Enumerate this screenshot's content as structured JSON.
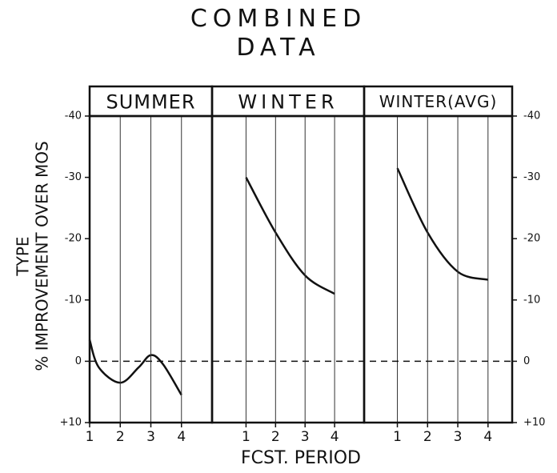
{
  "title": "COMBINED DATA",
  "ylabel": [
    "TYPE",
    "% IMPROVEMENT OVER MOS"
  ],
  "xlabel": "FCST. PERIOD",
  "reference_line": {
    "value": 0,
    "style": "dashed"
  },
  "chart_data": [
    {
      "type": "line",
      "title": "SUMMER",
      "color": "#111111",
      "x": [
        1,
        1.3,
        2,
        2.6,
        3,
        3.4,
        4
      ],
      "series": [
        {
          "values": [
            -3.5,
            1,
            3.5,
            1,
            -1,
            0.5,
            5.5
          ]
        }
      ],
      "xlim": [
        1,
        5
      ],
      "xticks": [
        1,
        2,
        3,
        4
      ],
      "grid": true,
      "ylim": [
        10,
        -40
      ],
      "yticks": [
        -40,
        -30,
        -20,
        -10,
        0,
        {
          "value": 10,
          "label": "+10"
        }
      ]
    },
    {
      "type": "line",
      "title": "WINTER",
      "color": "#111111",
      "x": [
        1,
        2,
        3,
        4
      ],
      "series": [
        {
          "values": [
            -30,
            -21,
            -14,
            -11
          ]
        }
      ],
      "xlim": [
        -0.15,
        5
      ],
      "xticks": [
        1,
        2,
        3,
        4
      ],
      "grid": true,
      "ylim": [
        10,
        -40
      ]
    },
    {
      "type": "line",
      "title": "WINTER(AVG)",
      "color": "#111111",
      "x": [
        1,
        2,
        3,
        4
      ],
      "series": [
        {
          "values": [
            -31.5,
            -21,
            -14.6,
            -13.3
          ]
        }
      ],
      "xlim": [
        -0.1,
        4.8
      ],
      "xticks": [
        1,
        2,
        3,
        4
      ],
      "grid": true,
      "ylim": [
        10,
        -40
      ],
      "y2lim": [
        10,
        -40
      ],
      "y2ticks": [
        -40,
        -30,
        -20,
        -10,
        0,
        {
          "value": 10,
          "label": "+10"
        }
      ]
    }
  ]
}
